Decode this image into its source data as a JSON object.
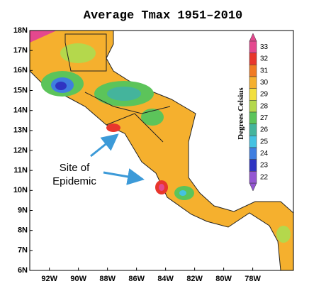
{
  "title": "Average Tmax 1951–2010",
  "map": {
    "lon_range": [
      -93.35,
      -75.2
    ],
    "lat_range": [
      6,
      18
    ],
    "lat_ticks": [
      {
        "value": 18,
        "label": "18N"
      },
      {
        "value": 17,
        "label": "17N"
      },
      {
        "value": 16,
        "label": "16N"
      },
      {
        "value": 15,
        "label": "15N"
      },
      {
        "value": 14,
        "label": "14N"
      },
      {
        "value": 13,
        "label": "13N"
      },
      {
        "value": 12,
        "label": "12N"
      },
      {
        "value": 11,
        "label": "11N"
      },
      {
        "value": 10,
        "label": "10N"
      },
      {
        "value": 9,
        "label": "9N"
      },
      {
        "value": 8,
        "label": "8N"
      },
      {
        "value": 7,
        "label": "7N"
      },
      {
        "value": 6,
        "label": "6N"
      }
    ],
    "lon_ticks": [
      {
        "value": -92,
        "label": "92W"
      },
      {
        "value": -90,
        "label": "90W"
      },
      {
        "value": -88,
        "label": "88W"
      },
      {
        "value": -86,
        "label": "86W"
      },
      {
        "value": -84,
        "label": "84W"
      },
      {
        "value": -82,
        "label": "82W"
      },
      {
        "value": -80,
        "label": "80W"
      },
      {
        "value": -78,
        "label": "78W"
      }
    ]
  },
  "colorbar": {
    "label": "Degrees Celsius",
    "levels": [
      33,
      32,
      31,
      30,
      29,
      28,
      27,
      26,
      25,
      24,
      23,
      22
    ],
    "colors": [
      "#e4488e",
      "#e8362c",
      "#f07a22",
      "#f5b02e",
      "#f2df3c",
      "#b4d84c",
      "#5cc45a",
      "#44b49c",
      "#44c2e2",
      "#3f7ee0",
      "#2f34c2",
      "#9456d2"
    ]
  },
  "annotation": {
    "lines": [
      "Site of",
      "Epidemic"
    ]
  }
}
